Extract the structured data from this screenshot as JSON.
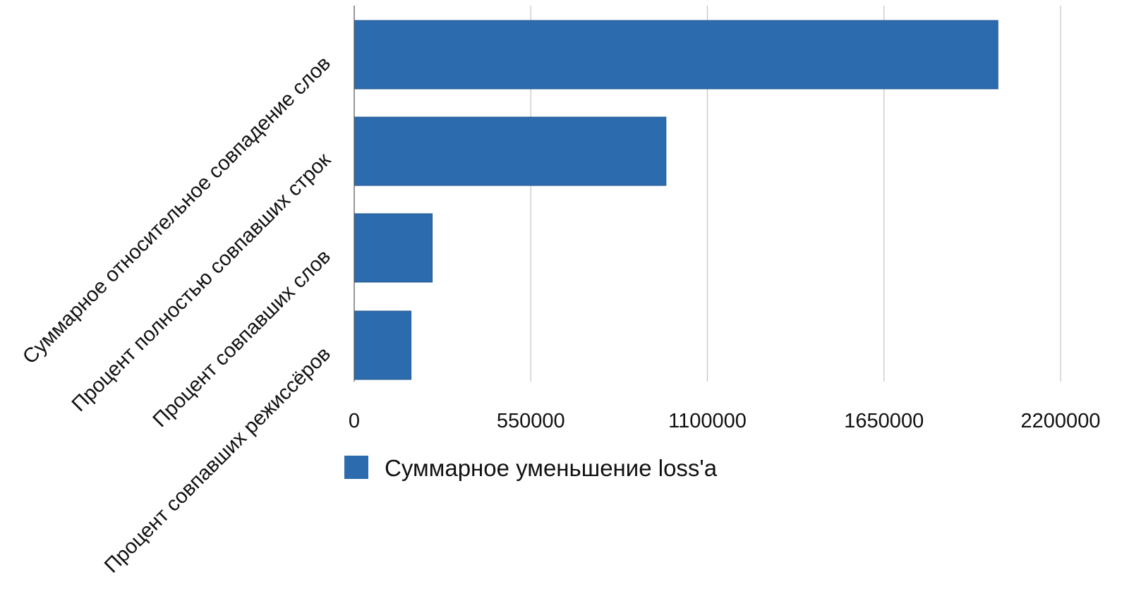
{
  "colors": {
    "bar": "#2c6bad",
    "bar_stroke": "#24588f",
    "grid": "#c4c4c4",
    "text": "#111111"
  },
  "legend": {
    "placement": "bottom",
    "label": "Суммарное уменьшение loss'a"
  },
  "chart_data": {
    "type": "bar",
    "orientation": "horizontal",
    "categories": [
      "Суммарное относительное совпадение слов",
      "Процент полностью совпавших строк",
      "Процент совпавших слов",
      "Процент совпавших режиссёров"
    ],
    "series": [
      {
        "name": "Суммарное уменьшение loss'a",
        "values": [
          2005000,
          971000,
          243000,
          177000
        ]
      }
    ],
    "xlim": [
      0,
      2200000
    ],
    "xticks": [
      "0",
      "550000",
      "1100000",
      "1650000",
      "2200000"
    ],
    "xtick_values": [
      0,
      550000,
      1100000,
      1650000,
      2200000
    ],
    "grid": true,
    "title": "",
    "xlabel": "",
    "ylabel": ""
  }
}
